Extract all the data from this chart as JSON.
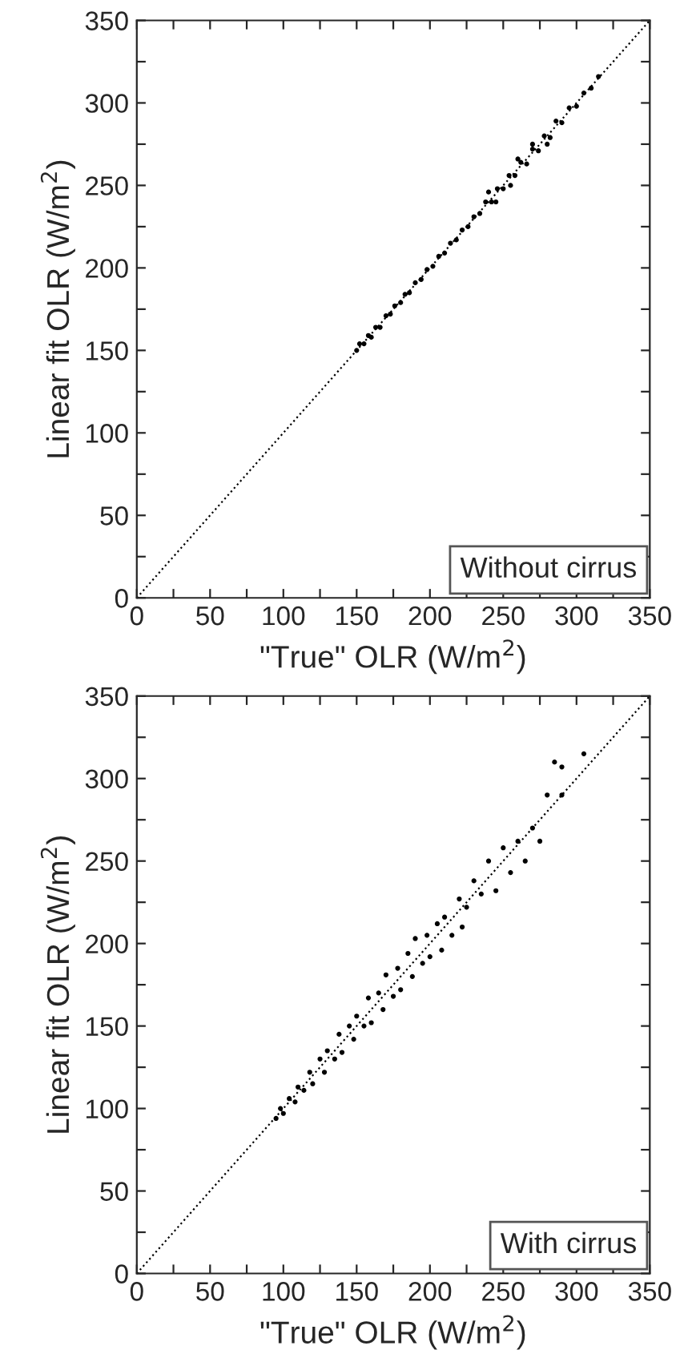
{
  "chart_data": [
    {
      "type": "scatter",
      "xlabel": "\"True\" OLR (W/m$^{2}$)",
      "ylabel": "Linear fit OLR (W/m$^{2}$)",
      "xlim": [
        0,
        350
      ],
      "ylim": [
        0,
        350
      ],
      "xticks": [
        0,
        {
          "value": 25,
          "label": null
        },
        50,
        {
          "value": 75,
          "label": null
        },
        100,
        {
          "value": 125,
          "label": null
        },
        150,
        {
          "value": 175,
          "label": null
        },
        200,
        {
          "value": 225,
          "label": null
        },
        250,
        {
          "value": 275,
          "label": null
        },
        300,
        {
          "value": 325,
          "label": null
        },
        350
      ],
      "yticks": [
        0,
        {
          "value": 25,
          "label": null
        },
        50,
        {
          "value": 75,
          "label": null
        },
        100,
        {
          "value": 125,
          "label": null
        },
        150,
        {
          "value": 175,
          "label": null
        },
        200,
        {
          "value": 225,
          "label": null
        },
        250,
        {
          "value": 275,
          "label": null
        },
        300,
        {
          "value": 325,
          "label": null
        },
        350
      ],
      "grid": false,
      "annotations": [
        "Without cirrus"
      ],
      "series": [
        {
          "marker": "circle",
          "color": "#000000",
          "x": [
            150,
            152,
            155,
            158,
            160,
            163,
            166,
            170,
            173,
            176,
            180,
            183,
            186,
            190,
            194,
            198,
            202,
            206,
            210,
            214,
            218,
            222,
            226,
            230,
            234,
            238,
            242,
            246,
            250,
            254,
            258,
            262,
            266,
            270,
            274,
            278,
            282,
            286,
            290,
            295,
            300,
            305,
            310,
            315,
            240,
            245,
            260,
            280,
            255,
            270
          ],
          "values": [
            150,
            154,
            154,
            159,
            158,
            164,
            164,
            171,
            172,
            177,
            179,
            184,
            185,
            191,
            193,
            199,
            201,
            207,
            209,
            215,
            217,
            223,
            225,
            231,
            233,
            240,
            240,
            248,
            248,
            256,
            256,
            264,
            263,
            272,
            271,
            280,
            279,
            289,
            288,
            297,
            298,
            306,
            309,
            316,
            246,
            240,
            266,
            275,
            250,
            275
          ]
        },
        {
          "type": "line",
          "color": "#000000",
          "line_style": "dotted",
          "x": [
            0,
            350
          ],
          "values": [
            0,
            350
          ]
        }
      ]
    },
    {
      "type": "scatter",
      "xlabel": "\"True\" OLR (W/m$^{2}$)",
      "ylabel": "Linear fit OLR (W/m$^{2}$)",
      "xlim": [
        0,
        350
      ],
      "ylim": [
        0,
        350
      ],
      "xticks": [
        0,
        {
          "value": 25,
          "label": null
        },
        50,
        {
          "value": 75,
          "label": null
        },
        100,
        {
          "value": 125,
          "label": null
        },
        150,
        {
          "value": 175,
          "label": null
        },
        200,
        {
          "value": 225,
          "label": null
        },
        250,
        {
          "value": 275,
          "label": null
        },
        300,
        {
          "value": 325,
          "label": null
        },
        350
      ],
      "yticks": [
        0,
        {
          "value": 25,
          "label": null
        },
        50,
        {
          "value": 75,
          "label": null
        },
        100,
        {
          "value": 125,
          "label": null
        },
        150,
        {
          "value": 175,
          "label": null
        },
        200,
        {
          "value": 225,
          "label": null
        },
        250,
        {
          "value": 275,
          "label": null
        },
        300,
        {
          "value": 325,
          "label": null
        },
        350
      ],
      "grid": false,
      "annotations": [
        "With cirrus"
      ],
      "series": [
        {
          "marker": "circle",
          "color": "#000000",
          "x": [
            95,
            98,
            100,
            104,
            108,
            110,
            114,
            118,
            120,
            125,
            128,
            130,
            135,
            138,
            140,
            145,
            148,
            150,
            155,
            158,
            160,
            165,
            168,
            170,
            175,
            178,
            180,
            185,
            188,
            190,
            195,
            198,
            200,
            205,
            208,
            210,
            215,
            220,
            222,
            225,
            230,
            235,
            240,
            245,
            250,
            255,
            260,
            265,
            270,
            275,
            280,
            285,
            290,
            290,
            305
          ],
          "values": [
            94,
            100,
            97,
            106,
            104,
            113,
            111,
            122,
            115,
            130,
            122,
            135,
            130,
            145,
            134,
            150,
            142,
            156,
            150,
            167,
            152,
            170,
            160,
            181,
            168,
            185,
            172,
            194,
            180,
            203,
            188,
            205,
            192,
            212,
            196,
            216,
            205,
            227,
            210,
            222,
            238,
            230,
            250,
            232,
            258,
            243,
            262,
            250,
            270,
            262,
            290,
            310,
            307,
            290,
            315
          ]
        },
        {
          "type": "line",
          "color": "#000000",
          "line_style": "dotted",
          "x": [
            0,
            350
          ],
          "values": [
            0,
            350
          ]
        }
      ]
    }
  ]
}
